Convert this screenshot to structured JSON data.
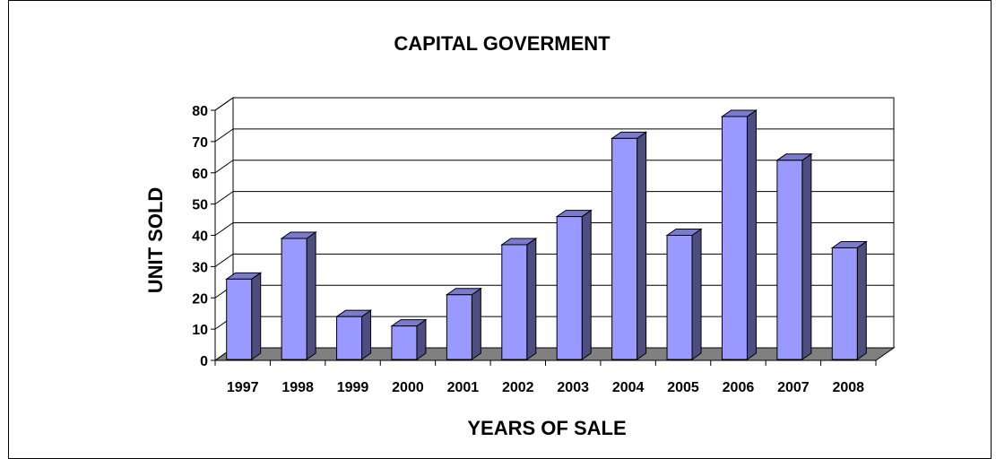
{
  "chart_data": {
    "type": "bar",
    "title": "CAPITAL GOVERMENT",
    "xlabel": "YEARS OF SALE",
    "ylabel": "UNIT SOLD",
    "categories": [
      "1997",
      "1998",
      "1999",
      "2000",
      "2001",
      "2002",
      "2003",
      "2004",
      "2005",
      "2006",
      "2007",
      "2008"
    ],
    "values": [
      26,
      39,
      14,
      11,
      21,
      37,
      46,
      71,
      40,
      78,
      64,
      36
    ],
    "ylim": [
      0,
      80
    ],
    "yticks": [
      "0",
      "10",
      "20",
      "30",
      "40",
      "50",
      "60",
      "70",
      "80"
    ],
    "grid": true,
    "legend": "none",
    "colors": {
      "bar_front": "#9999ff",
      "bar_side": "#4d4d80",
      "bar_top": "#7b7bcc",
      "floor": "#808080",
      "gridline": "#000000",
      "wall": "#ffffff"
    }
  }
}
